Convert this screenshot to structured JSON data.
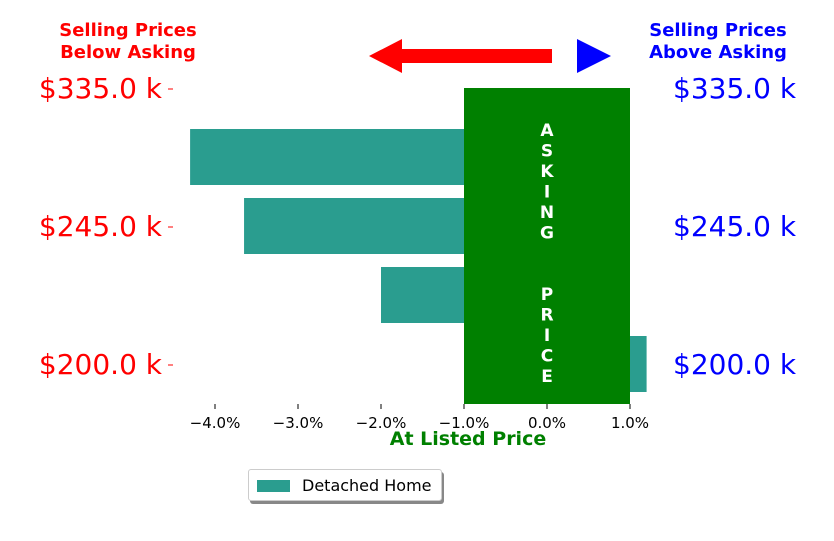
{
  "chart_data": {
    "type": "bar",
    "orientation": "horizontal",
    "header_left": [
      "Selling Prices",
      "Below Asking"
    ],
    "header_right": [
      "Selling Prices",
      "Above Asking"
    ],
    "xlabel": "At Listed Price",
    "x_ticks": [
      "−4.0%",
      "−3.0%",
      "−2.0%",
      "−1.0%",
      "0.0%",
      "1.0%"
    ],
    "xlim": [
      -4.4,
      1.3
    ],
    "y_ticks": [
      "$200.0 k",
      "$245.0 k",
      "$335.0 k"
    ],
    "categories": [
      "$335.0 k",
      "(unlabeled)",
      "$245.0 k",
      "(unlabeled)",
      "$200.0 k"
    ],
    "series": [
      {
        "name": "Detached Home",
        "values": [
          null,
          -4.3,
          -3.65,
          -2.0,
          1.2
        ]
      }
    ],
    "band_label": "ASKING  PRICE",
    "band_range": [
      -1.0,
      1.0
    ],
    "colors": {
      "bar": "#2a9d8f",
      "band": "#008000",
      "left": "#ff0000",
      "right": "#0000ff"
    },
    "legend_position": "bottom-center"
  }
}
